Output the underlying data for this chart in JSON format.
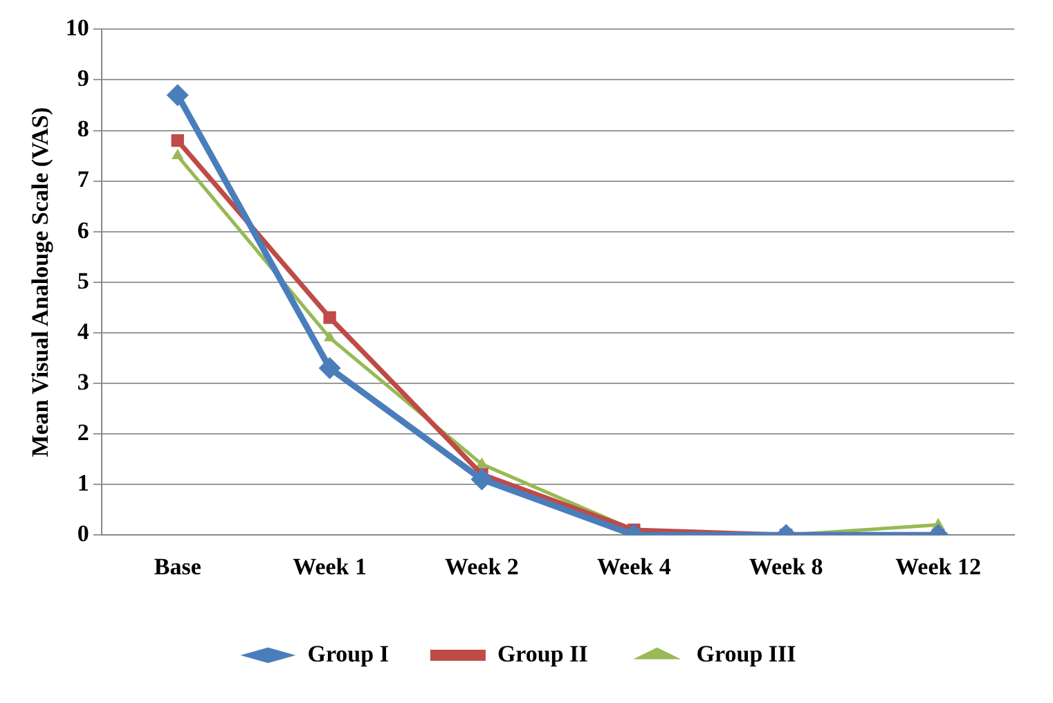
{
  "chart_data": {
    "type": "line",
    "ylabel": "Mean Visual Analouge Scale (VAS)",
    "categories": [
      "Base",
      "Week 1",
      "Week 2",
      "Week 4",
      "Week 8",
      "Week 12"
    ],
    "series": [
      {
        "name": "Group I",
        "color": "#4a7ebb",
        "marker": "diamond",
        "values": [
          8.7,
          3.3,
          1.1,
          0,
          0,
          0
        ]
      },
      {
        "name": "Group II",
        "color": "#be4b48",
        "marker": "square",
        "values": [
          7.8,
          4.3,
          1.2,
          0.1,
          0,
          0
        ]
      },
      {
        "name": "Group III",
        "color": "#98b954",
        "marker": "triangle",
        "values": [
          7.5,
          3.9,
          1.4,
          0.1,
          0,
          0.2
        ]
      }
    ],
    "ylim": [
      0,
      10
    ],
    "yticks": [
      0,
      1,
      2,
      3,
      4,
      5,
      6,
      7,
      8,
      9,
      10
    ],
    "grid": "y",
    "legend": "bottom",
    "line_style": "solid"
  }
}
